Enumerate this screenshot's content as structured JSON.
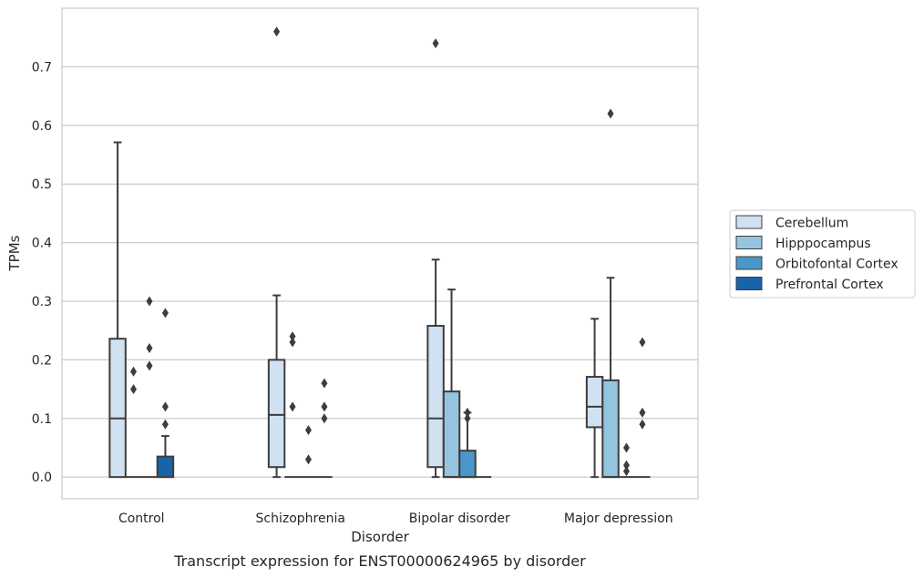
{
  "chart_data": {
    "type": "box",
    "caption": "Transcript expression for ENST00000624965 by disorder",
    "xlabel": "Disorder",
    "ylabel": "TPMs",
    "ylim": [
      -0.037,
      0.8
    ],
    "yticks": [
      0.0,
      0.1,
      0.2,
      0.3,
      0.4,
      0.5,
      0.6,
      0.7
    ],
    "ytick_labels": [
      "0.0",
      "0.1",
      "0.2",
      "0.3",
      "0.4",
      "0.5",
      "0.6",
      "0.7"
    ],
    "grid": "horizontal",
    "legend_position": "right",
    "categories": [
      "Control",
      "Schizophrenia",
      "Bipolar disorder",
      "Major depression"
    ],
    "series": [
      {
        "name": "Cerebellum",
        "color": "#d0e1f2",
        "boxes": [
          {
            "whislo": 0.0,
            "q1": 0.0,
            "med": 0.1,
            "q3": 0.236,
            "whishi": 0.571,
            "fliers": []
          },
          {
            "whislo": 0.0,
            "q1": 0.017,
            "med": 0.106,
            "q3": 0.2,
            "whishi": 0.31,
            "fliers": [
              0.76
            ]
          },
          {
            "whislo": 0.0,
            "q1": 0.017,
            "med": 0.1,
            "q3": 0.258,
            "whishi": 0.371,
            "fliers": [
              0.74
            ]
          },
          {
            "whislo": 0.0,
            "q1": 0.085,
            "med": 0.12,
            "q3": 0.171,
            "whishi": 0.27,
            "fliers": []
          }
        ]
      },
      {
        "name": "Hipppocampus",
        "color": "#94c4df",
        "boxes": [
          {
            "whislo": 0.0,
            "q1": 0.0,
            "med": 0.0,
            "q3": 0.0,
            "whishi": 0.0,
            "fliers": [
              0.15,
              0.18
            ]
          },
          {
            "whislo": 0.0,
            "q1": 0.0,
            "med": 0.0,
            "q3": 0.0,
            "whishi": 0.0,
            "fliers": [
              0.12,
              0.23,
              0.24
            ]
          },
          {
            "whislo": 0.0,
            "q1": 0.0,
            "med": 0.0,
            "q3": 0.146,
            "whishi": 0.32,
            "fliers": []
          },
          {
            "whislo": 0.0,
            "q1": 0.0,
            "med": 0.0,
            "q3": 0.165,
            "whishi": 0.34,
            "fliers": [
              0.62
            ]
          }
        ]
      },
      {
        "name": "Orbitofontal Cortex",
        "color": "#4a98c9",
        "boxes": [
          {
            "whislo": 0.0,
            "q1": 0.0,
            "med": 0.0,
            "q3": 0.0,
            "whishi": 0.0,
            "fliers": [
              0.19,
              0.22,
              0.3
            ]
          },
          {
            "whislo": 0.0,
            "q1": 0.0,
            "med": 0.0,
            "q3": 0.0,
            "whishi": 0.0,
            "fliers": [
              0.03,
              0.08
            ]
          },
          {
            "whislo": 0.0,
            "q1": 0.0,
            "med": 0.0,
            "q3": 0.045,
            "whishi": 0.11,
            "fliers": [
              0.1,
              0.11
            ]
          },
          {
            "whislo": 0.0,
            "q1": 0.0,
            "med": 0.0,
            "q3": 0.0,
            "whishi": 0.0,
            "fliers": [
              0.01,
              0.02,
              0.05
            ]
          }
        ]
      },
      {
        "name": "Prefrontal Cortex",
        "color": "#1764ab",
        "boxes": [
          {
            "whislo": 0.0,
            "q1": 0.0,
            "med": 0.0,
            "q3": 0.035,
            "whishi": 0.07,
            "fliers": [
              0.09,
              0.12,
              0.28
            ]
          },
          {
            "whislo": 0.0,
            "q1": 0.0,
            "med": 0.0,
            "q3": 0.0,
            "whishi": 0.0,
            "fliers": [
              0.1,
              0.12,
              0.16
            ]
          },
          {
            "whislo": 0.0,
            "q1": 0.0,
            "med": 0.0,
            "q3": 0.0,
            "whishi": 0.0,
            "fliers": []
          },
          {
            "whislo": 0.0,
            "q1": 0.0,
            "med": 0.0,
            "q3": 0.0,
            "whishi": 0.0,
            "fliers": [
              0.09,
              0.11,
              0.23
            ]
          }
        ]
      }
    ]
  }
}
